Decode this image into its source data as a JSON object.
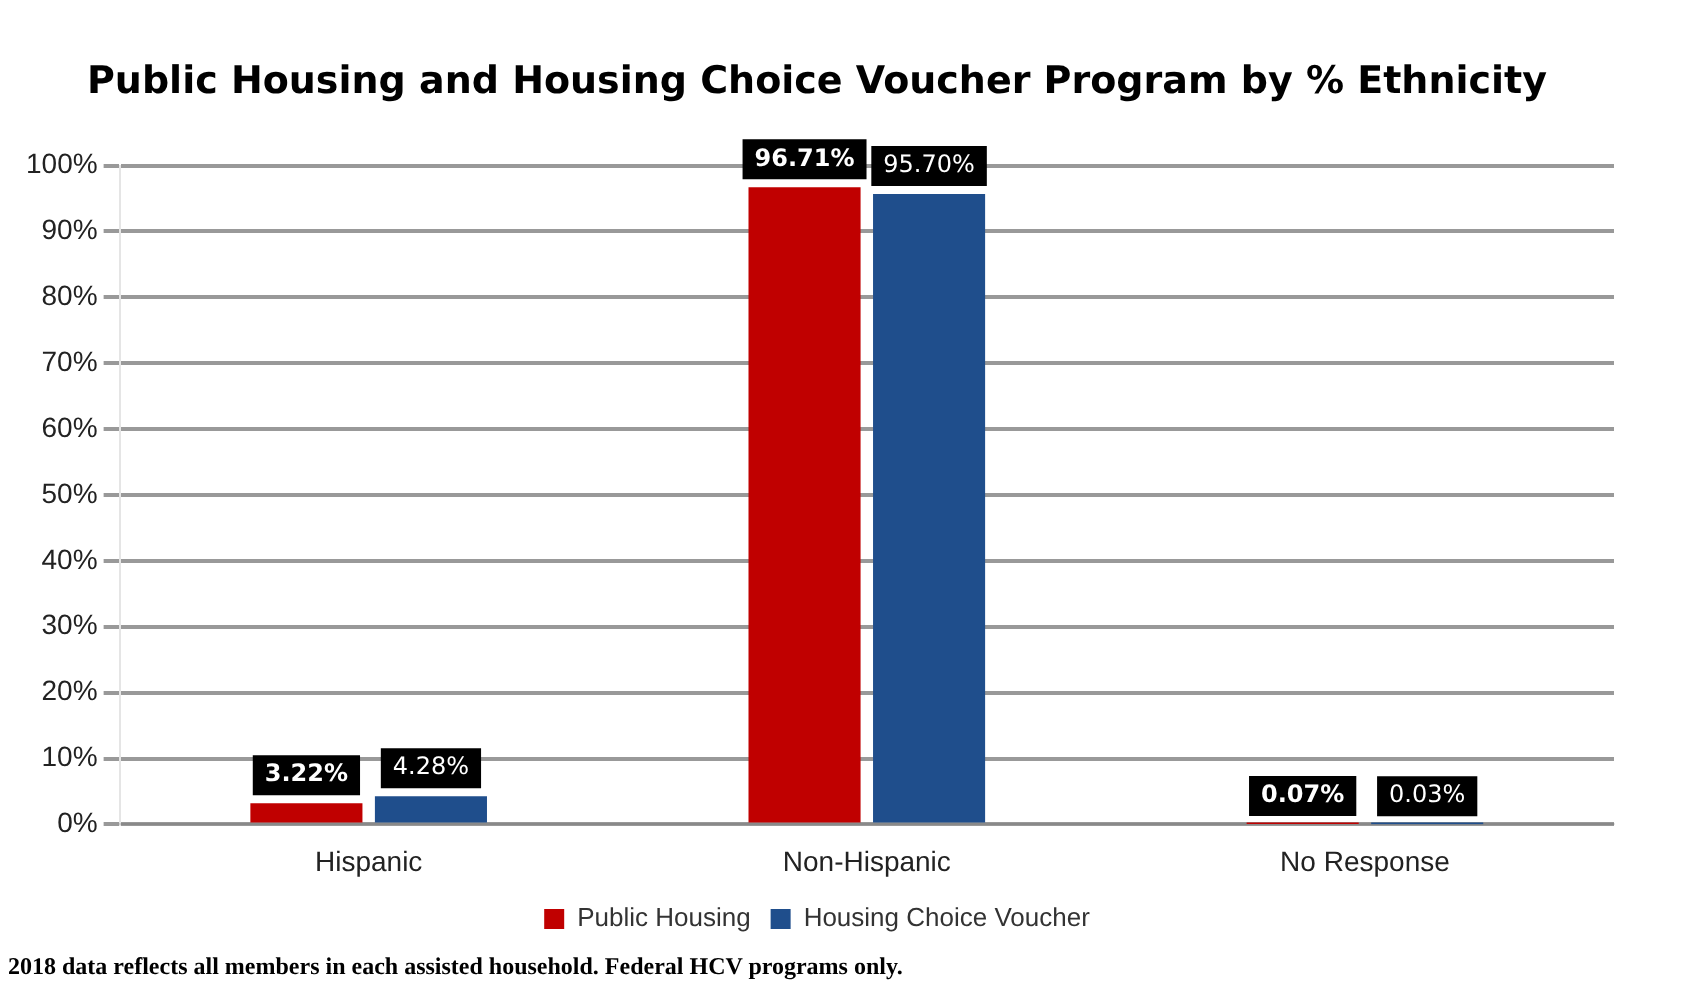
{
  "chart_data": {
    "type": "bar",
    "title": "Public Housing and Housing Choice Voucher Program by % Ethnicity",
    "categories": [
      "Hispanic",
      "Non-Hispanic",
      "No Response"
    ],
    "series": [
      {
        "name": "Public Housing",
        "color": "#c00000",
        "values": [
          3.22,
          96.71,
          0.07
        ],
        "value_labels": [
          "3.22%",
          "96.71%",
          "0.07%"
        ]
      },
      {
        "name": "Housing Choice Voucher",
        "color": "#1f4e8c",
        "values": [
          4.28,
          95.7,
          0.03
        ],
        "value_labels": [
          "4.28%",
          "95.70%",
          "0.03%"
        ]
      }
    ],
    "ylim": [
      0,
      100
    ],
    "yticks": [
      {
        "value": 0,
        "label": "0%"
      },
      {
        "value": 10,
        "label": "10%"
      },
      {
        "value": 20,
        "label": "20%"
      },
      {
        "value": 30,
        "label": "30%"
      },
      {
        "value": 40,
        "label": "40%"
      },
      {
        "value": 50,
        "label": "50%"
      },
      {
        "value": 60,
        "label": "60%"
      },
      {
        "value": 70,
        "label": "70%"
      },
      {
        "value": 80,
        "label": "80%"
      },
      {
        "value": 90,
        "label": "90%"
      },
      {
        "value": 100,
        "label": "100%"
      }
    ],
    "grid": "y",
    "legend": "bottom",
    "annotations": [
      "2018 data reflects all members in each assisted household. Federal HCV programs only."
    ]
  }
}
